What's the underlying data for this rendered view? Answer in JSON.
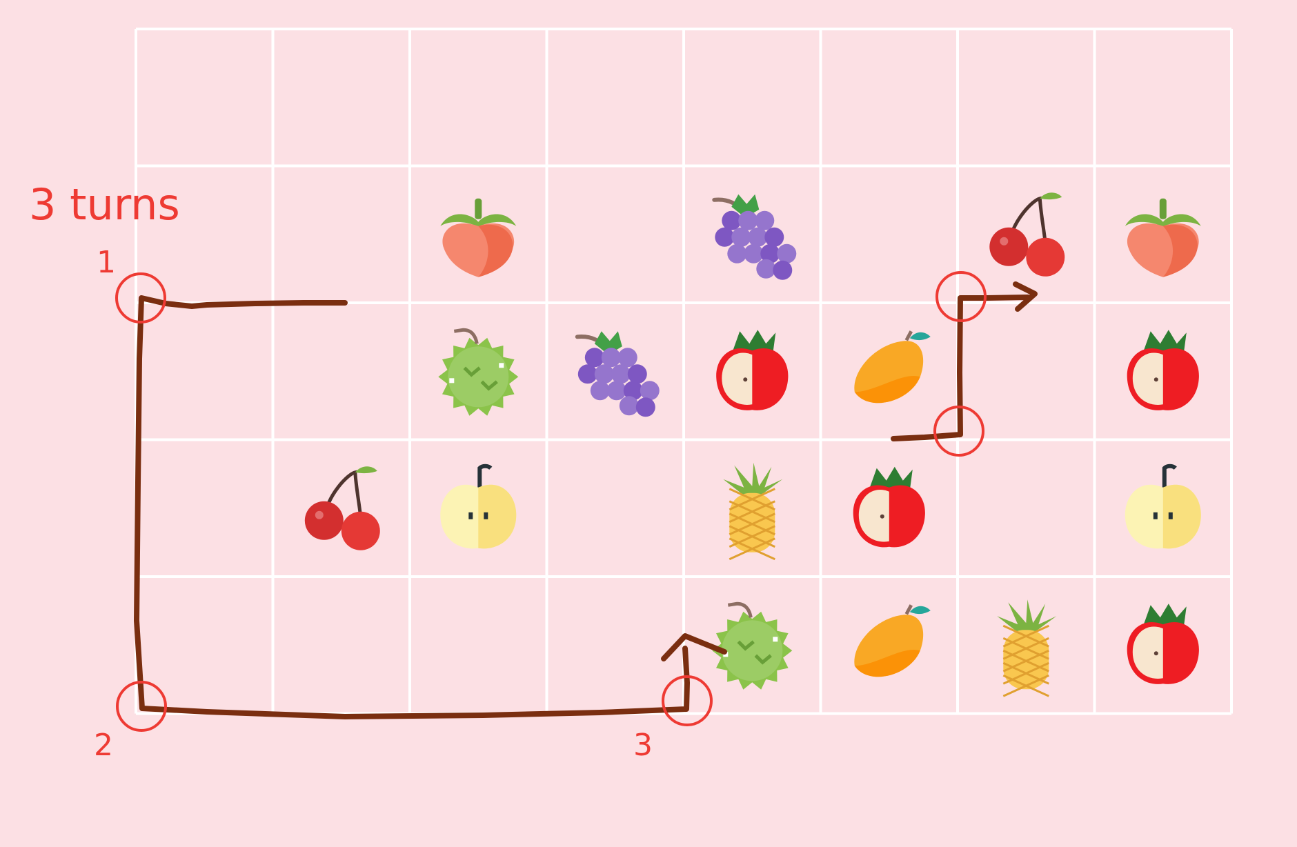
{
  "title": "3 turns",
  "colors": {
    "background": "#fce0e4",
    "grid_line": "#ffffff",
    "annotation": "#ee3a33",
    "path": "#7a2e10"
  },
  "grid": {
    "columns": 8,
    "rows": 5
  },
  "tiles": [
    {
      "row": 1,
      "col": 2,
      "fruit": "peach"
    },
    {
      "row": 1,
      "col": 4,
      "fruit": "grapes"
    },
    {
      "row": 1,
      "col": 6,
      "fruit": "cherry"
    },
    {
      "row": 1,
      "col": 7,
      "fruit": "peach"
    },
    {
      "row": 2,
      "col": 2,
      "fruit": "durian"
    },
    {
      "row": 2,
      "col": 3,
      "fruit": "grapes"
    },
    {
      "row": 2,
      "col": 4,
      "fruit": "apple"
    },
    {
      "row": 2,
      "col": 5,
      "fruit": "mango"
    },
    {
      "row": 2,
      "col": 7,
      "fruit": "apple"
    },
    {
      "row": 3,
      "col": 1,
      "fruit": "cherry"
    },
    {
      "row": 3,
      "col": 2,
      "fruit": "pear"
    },
    {
      "row": 3,
      "col": 4,
      "fruit": "pineapple"
    },
    {
      "row": 3,
      "col": 5,
      "fruit": "apple"
    },
    {
      "row": 3,
      "col": 7,
      "fruit": "pear"
    },
    {
      "row": 4,
      "col": 4,
      "fruit": "durian"
    },
    {
      "row": 4,
      "col": 5,
      "fruit": "mango"
    },
    {
      "row": 4,
      "col": 6,
      "fruit": "pineapple"
    },
    {
      "row": 4,
      "col": 7,
      "fruit": "apple"
    }
  ],
  "turn_markers": [
    {
      "label": "1"
    },
    {
      "label": "2"
    },
    {
      "label": "3"
    }
  ]
}
